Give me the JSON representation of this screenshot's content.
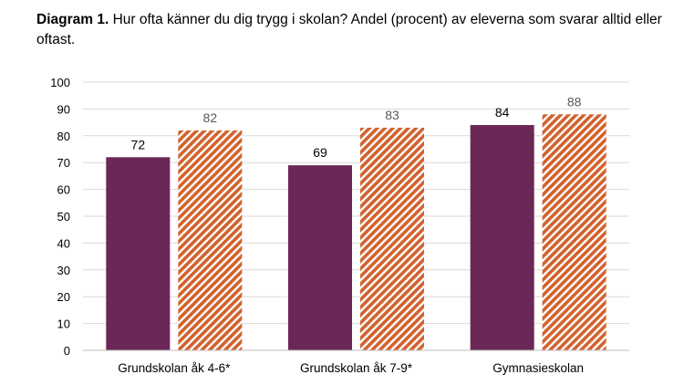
{
  "caption": {
    "label": "Diagram 1.",
    "text": " Hur ofta känner du dig trygg i skolan? Andel (procent) av eleverna som svarar alltid eller oftast."
  },
  "colors": {
    "series1": "#6b2857",
    "series2_stripe": "#d2622f",
    "series2_base": "#ffffff",
    "grid": "#d9d9d9",
    "axis": "#bfbfbf",
    "label_dark": "#000000",
    "label_light": "#595959"
  },
  "chart_data": {
    "type": "bar",
    "categories": [
      "Grundskolan åk 4-6*",
      "Grundskolan åk 7-9*",
      "Gymnasieskolan"
    ],
    "series": [
      {
        "values": [
          72,
          69,
          84
        ],
        "pattern": "solid"
      },
      {
        "values": [
          82,
          83,
          88
        ],
        "pattern": "diagonal-stripes"
      }
    ],
    "yticks": [
      0,
      10,
      20,
      30,
      40,
      50,
      60,
      70,
      80,
      90,
      100
    ],
    "ylim": [
      0,
      100
    ],
    "grid": true,
    "legend": "none",
    "data_labels": true
  }
}
